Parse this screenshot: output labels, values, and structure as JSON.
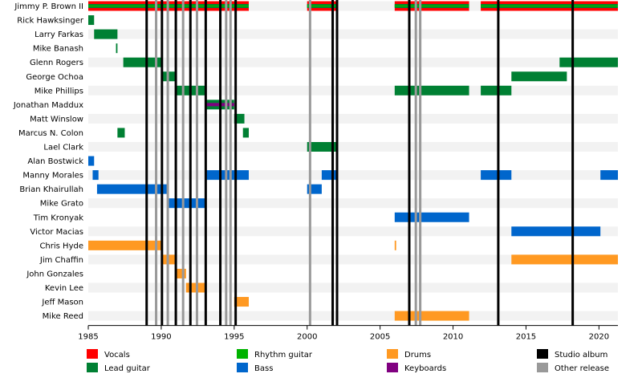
{
  "chart_data": {
    "type": "timeline",
    "x_range": [
      1985,
      2021.3
    ],
    "x_ticks": [
      "1985",
      "1990",
      "1995",
      "2000",
      "2005",
      "2010",
      "2015",
      "2020"
    ],
    "grid": "alternating row bands",
    "members": [
      "Jimmy P. Brown II",
      "Rick Hawksinger",
      "Larry Farkas",
      "Mike Banash",
      "Glenn Rogers",
      "George Ochoa",
      "Mike Phillips",
      "Jonathan Maddux",
      "Matt Winslow",
      "Marcus N. Colon",
      "Lael Clark",
      "Alan Bostwick",
      "Manny Morales",
      "Brian Khairullah",
      "Mike Grato",
      "Tim Kronyak",
      "Victor Macias",
      "Chris Hyde",
      "Jim Chaffin",
      "John Gonzales",
      "Kevin Lee",
      "Jeff Mason",
      "Mike Reed"
    ],
    "roles": [
      {
        "name": "Vocals",
        "color": "#ff0000"
      },
      {
        "name": "Lead guitar",
        "color": "#008033"
      },
      {
        "name": "Rhythm guitar",
        "color": "#00b300"
      },
      {
        "name": "Bass",
        "color": "#0066cc"
      },
      {
        "name": "Drums",
        "color": "#ff9922"
      },
      {
        "name": "Keyboards",
        "color": "#800080"
      }
    ],
    "markers": [
      {
        "name": "Studio album",
        "color": "#000000"
      },
      {
        "name": "Other release",
        "color": "#999999"
      }
    ],
    "bars": [
      {
        "member": 0,
        "start": 1985.0,
        "end": 1996.0,
        "roles": [
          "Vocals",
          "Rhythm guitar",
          "Lead guitar"
        ]
      },
      {
        "member": 0,
        "start": 2000.0,
        "end": 2002.0,
        "roles": [
          "Vocals",
          "Rhythm guitar",
          "Lead guitar"
        ]
      },
      {
        "member": 0,
        "start": 2006.0,
        "end": 2011.1,
        "roles": [
          "Vocals",
          "Rhythm guitar",
          "Lead guitar"
        ]
      },
      {
        "member": 0,
        "start": 2011.9,
        "end": 2021.3,
        "roles": [
          "Vocals",
          "Rhythm guitar",
          "Lead guitar"
        ]
      },
      {
        "member": 1,
        "start": 1985.0,
        "end": 1985.4,
        "roles": [
          "Lead guitar"
        ]
      },
      {
        "member": 2,
        "start": 1985.4,
        "end": 1987.0,
        "roles": [
          "Lead guitar"
        ]
      },
      {
        "member": 3,
        "start": 1986.9,
        "end": 1987.0,
        "roles": [
          "Lead guitar"
        ]
      },
      {
        "member": 4,
        "start": 1987.4,
        "end": 1990.0,
        "roles": [
          "Lead guitar"
        ]
      },
      {
        "member": 4,
        "start": 2017.3,
        "end": 2021.3,
        "roles": [
          "Lead guitar"
        ]
      },
      {
        "member": 5,
        "start": 1990.0,
        "end": 1991.0,
        "roles": [
          "Lead guitar"
        ]
      },
      {
        "member": 5,
        "start": 2014.0,
        "end": 2017.8,
        "roles": [
          "Lead guitar"
        ]
      },
      {
        "member": 6,
        "start": 1991.0,
        "end": 1993.0,
        "roles": [
          "Lead guitar"
        ]
      },
      {
        "member": 6,
        "start": 2006.0,
        "end": 2011.1,
        "roles": [
          "Lead guitar"
        ]
      },
      {
        "member": 6,
        "start": 2011.9,
        "end": 2014.0,
        "roles": [
          "Lead guitar"
        ]
      },
      {
        "member": 7,
        "start": 1993.0,
        "end": 1995.0,
        "roles": [
          "Lead guitar",
          "Keyboards"
        ]
      },
      {
        "member": 8,
        "start": 1995.0,
        "end": 1995.7,
        "roles": [
          "Lead guitar"
        ]
      },
      {
        "member": 9,
        "start": 1987.0,
        "end": 1987.5,
        "roles": [
          "Lead guitar"
        ]
      },
      {
        "member": 9,
        "start": 1995.6,
        "end": 1996.0,
        "roles": [
          "Lead guitar"
        ]
      },
      {
        "member": 10,
        "start": 2000.0,
        "end": 2002.0,
        "roles": [
          "Lead guitar"
        ]
      },
      {
        "member": 11,
        "start": 1985.0,
        "end": 1985.4,
        "roles": [
          "Bass"
        ]
      },
      {
        "member": 12,
        "start": 1985.3,
        "end": 1985.7,
        "roles": [
          "Bass"
        ]
      },
      {
        "member": 12,
        "start": 1993.0,
        "end": 1996.0,
        "roles": [
          "Bass"
        ]
      },
      {
        "member": 12,
        "start": 2001.0,
        "end": 2002.0,
        "roles": [
          "Bass"
        ]
      },
      {
        "member": 12,
        "start": 2011.9,
        "end": 2014.0,
        "roles": [
          "Bass"
        ]
      },
      {
        "member": 12,
        "start": 2020.1,
        "end": 2021.3,
        "roles": [
          "Bass"
        ]
      },
      {
        "member": 13,
        "start": 1985.6,
        "end": 1990.5,
        "roles": [
          "Bass"
        ]
      },
      {
        "member": 13,
        "start": 2000.0,
        "end": 2001.0,
        "roles": [
          "Bass"
        ]
      },
      {
        "member": 14,
        "start": 1990.4,
        "end": 1993.0,
        "roles": [
          "Bass"
        ]
      },
      {
        "member": 15,
        "start": 2006.0,
        "end": 2011.1,
        "roles": [
          "Bass"
        ]
      },
      {
        "member": 16,
        "start": 2014.0,
        "end": 2020.1,
        "roles": [
          "Bass"
        ]
      },
      {
        "member": 17,
        "start": 1985.0,
        "end": 1990.0,
        "roles": [
          "Drums"
        ]
      },
      {
        "member": 17,
        "start": 2006.0,
        "end": 2006.1,
        "roles": [
          "Drums"
        ]
      },
      {
        "member": 18,
        "start": 1990.0,
        "end": 1991.0,
        "roles": [
          "Drums"
        ]
      },
      {
        "member": 18,
        "start": 2014.0,
        "end": 2021.3,
        "roles": [
          "Drums"
        ]
      },
      {
        "member": 19,
        "start": 1991.0,
        "end": 1991.7,
        "roles": [
          "Drums"
        ]
      },
      {
        "member": 20,
        "start": 1991.7,
        "end": 1993.0,
        "roles": [
          "Drums"
        ]
      },
      {
        "member": 21,
        "start": 1995.0,
        "end": 1996.0,
        "roles": [
          "Drums"
        ]
      },
      {
        "member": 22,
        "start": 2006.0,
        "end": 2011.1,
        "roles": [
          "Drums"
        ]
      }
    ],
    "releases": [
      {
        "year": 1989.0,
        "kind": "Studio album"
      },
      {
        "year": 1989.65,
        "kind": "Other release"
      },
      {
        "year": 1990.05,
        "kind": "Studio album"
      },
      {
        "year": 1990.45,
        "kind": "Other release"
      },
      {
        "year": 1991.0,
        "kind": "Studio album"
      },
      {
        "year": 1991.5,
        "kind": "Other release"
      },
      {
        "year": 1992.0,
        "kind": "Studio album"
      },
      {
        "year": 1992.45,
        "kind": "Other release"
      },
      {
        "year": 1993.05,
        "kind": "Studio album"
      },
      {
        "year": 1994.05,
        "kind": "Studio album"
      },
      {
        "year": 1994.45,
        "kind": "Other release"
      },
      {
        "year": 1994.75,
        "kind": "Other release"
      },
      {
        "year": 1995.1,
        "kind": "Studio album"
      },
      {
        "year": 2000.2,
        "kind": "Other release"
      },
      {
        "year": 2001.75,
        "kind": "Studio album"
      },
      {
        "year": 2002.05,
        "kind": "Studio album"
      },
      {
        "year": 2007.0,
        "kind": "Studio album"
      },
      {
        "year": 2007.45,
        "kind": "Other release"
      },
      {
        "year": 2007.75,
        "kind": "Other release"
      },
      {
        "year": 2013.1,
        "kind": "Studio album"
      },
      {
        "year": 2018.2,
        "kind": "Studio album"
      }
    ]
  }
}
